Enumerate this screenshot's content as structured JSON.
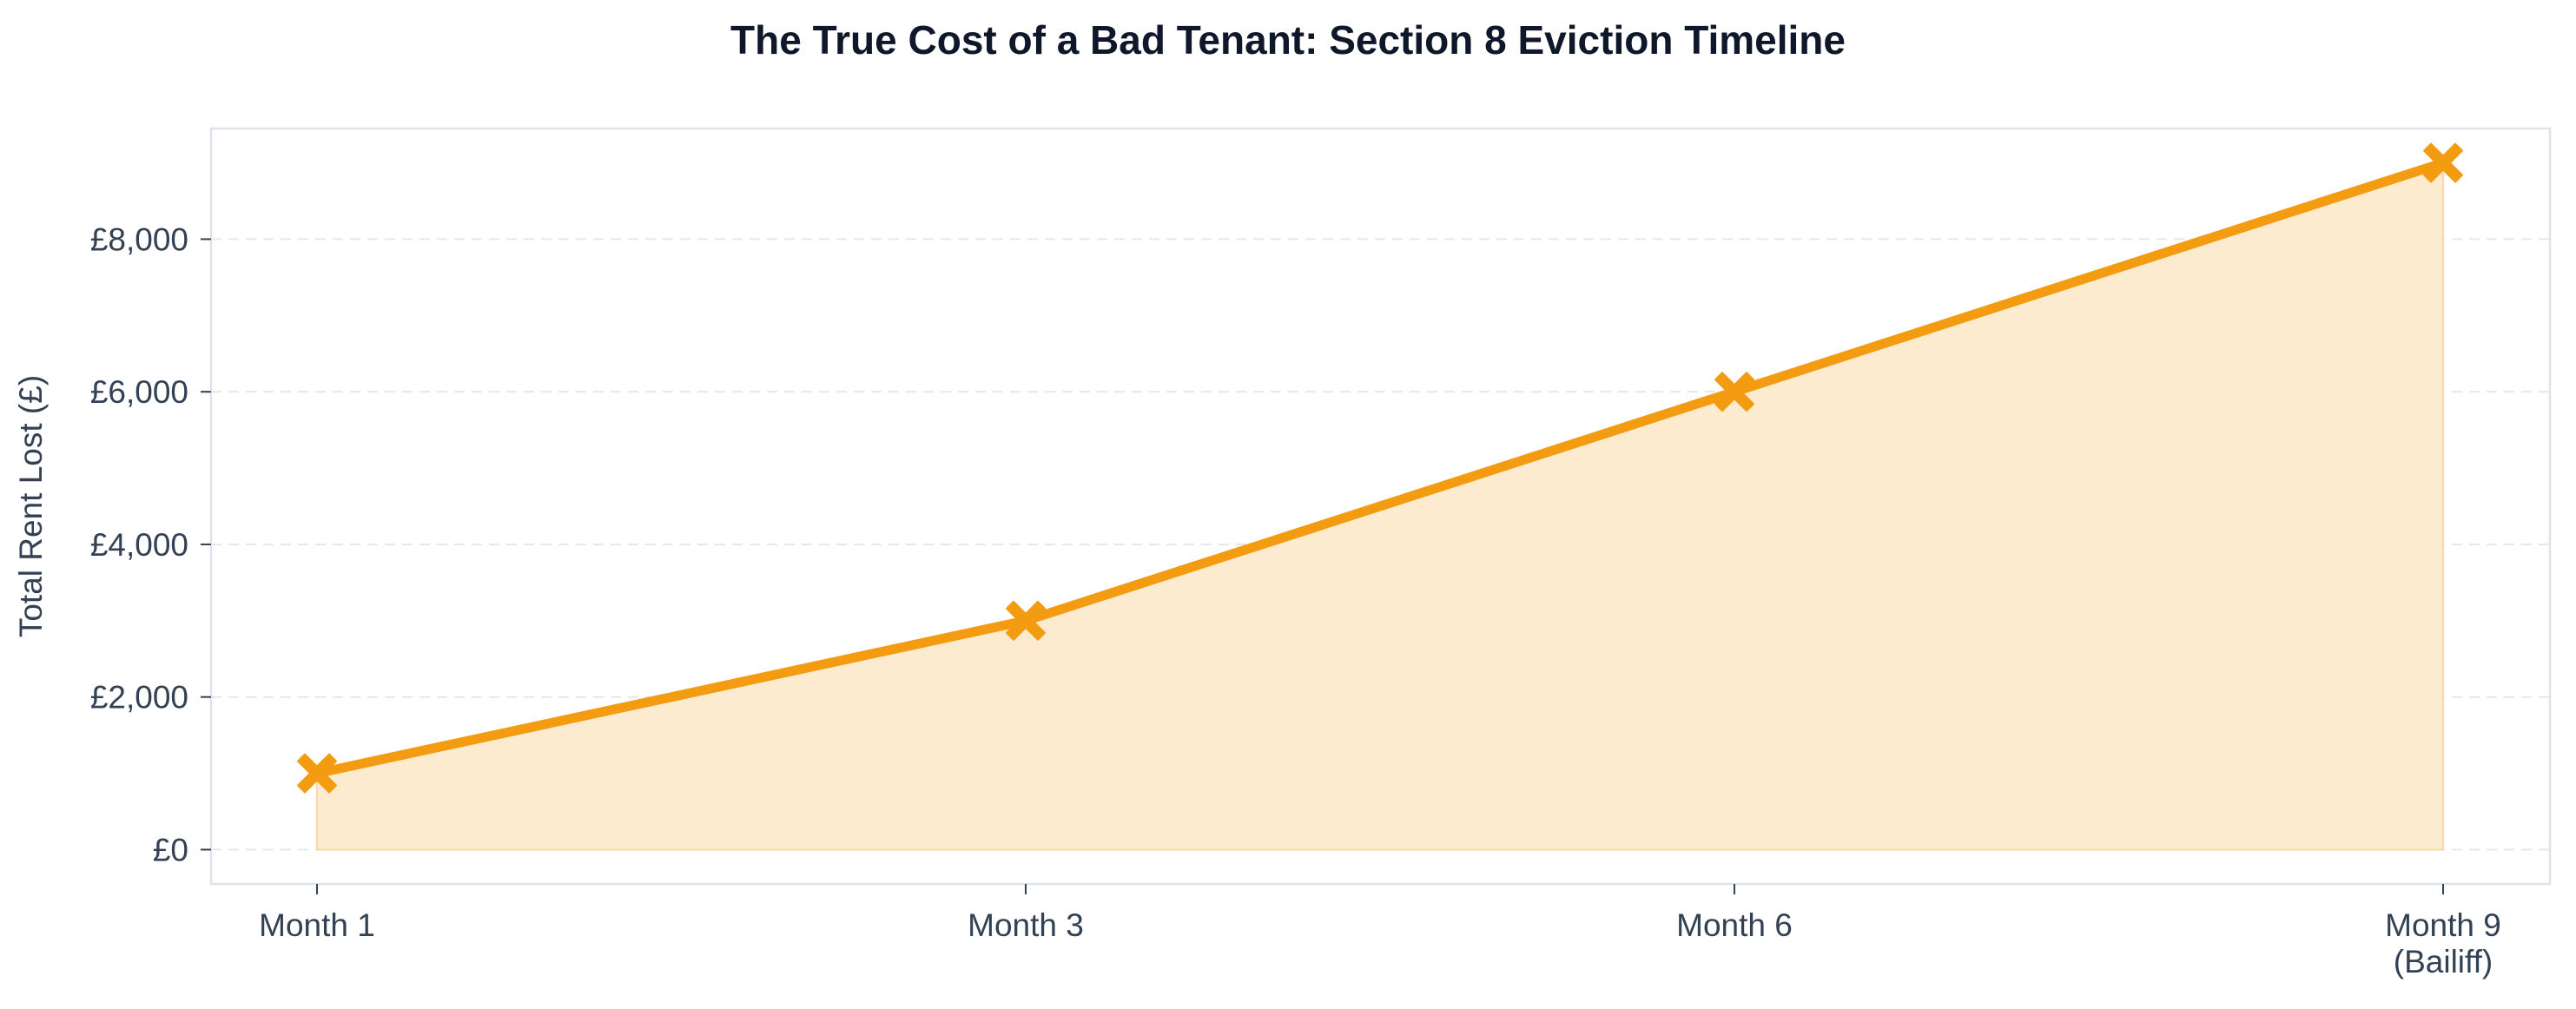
{
  "chart_data": {
    "type": "area",
    "title": "The True Cost of a Bad Tenant: Section 8 Eviction Timeline",
    "xlabel": "",
    "ylabel": "Total Rent Lost (£)",
    "categories": [
      [
        "Month 1"
      ],
      [
        "Month 3"
      ],
      [
        "Month 6"
      ],
      [
        "Month 9",
        "(Bailiff)"
      ]
    ],
    "series": [
      {
        "values": [
          1000,
          3000,
          6000,
          9000
        ],
        "marker": "x-filled"
      }
    ],
    "y_ticks": [
      {
        "value": 0,
        "label": "£0"
      },
      {
        "value": 2000,
        "label": "£2,000"
      },
      {
        "value": 4000,
        "label": "£4,000"
      },
      {
        "value": 6000,
        "label": "£6,000"
      },
      {
        "value": 8000,
        "label": "£8,000"
      }
    ],
    "ylim": [
      -450,
      9450
    ],
    "grid": "horizontal dashed",
    "legend": "none",
    "colors": {
      "line": "#f39c12",
      "fill": "#fdebd0",
      "frame": "#dfe4ea",
      "grid": "#e5e7eb",
      "tick_text": "#334155",
      "title": "#0f172a"
    }
  }
}
